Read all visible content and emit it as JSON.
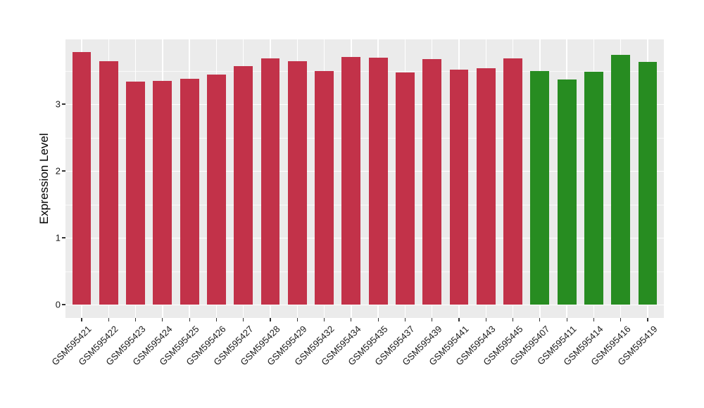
{
  "chart_data": {
    "type": "bar",
    "title": "",
    "xlabel": "",
    "ylabel": "Expression Level",
    "categories": [
      "GSM595421",
      "GSM595422",
      "GSM595423",
      "GSM595424",
      "GSM595425",
      "GSM595426",
      "GSM595427",
      "GSM595428",
      "GSM595429",
      "GSM595432",
      "GSM595434",
      "GSM595435",
      "GSM595437",
      "GSM595439",
      "GSM595441",
      "GSM595443",
      "GSM595445",
      "GSM595407",
      "GSM595411",
      "GSM595414",
      "GSM595416",
      "GSM595419"
    ],
    "values": [
      3.78,
      3.64,
      3.34,
      3.35,
      3.38,
      3.44,
      3.57,
      3.68,
      3.64,
      3.49,
      3.71,
      3.69,
      3.47,
      3.67,
      3.52,
      3.54,
      3.68,
      3.49,
      3.37,
      3.48,
      3.74,
      3.63
    ],
    "groups": [
      0,
      0,
      0,
      0,
      0,
      0,
      0,
      0,
      0,
      0,
      0,
      0,
      0,
      0,
      0,
      0,
      0,
      1,
      1,
      1,
      1,
      1
    ],
    "palette": [
      "#C23249",
      "#278C21"
    ],
    "ylim": [
      0,
      3.97
    ],
    "yticks": [
      0,
      1,
      2,
      3
    ],
    "yticks_minor": [
      0.5,
      1.5,
      2.5,
      3.5
    ],
    "grid": true,
    "legend": "none",
    "panel_background": "#EBEBEB",
    "grid_color": "#FFFFFF",
    "bar_width_fraction": 0.7,
    "x_label_angle": 45
  }
}
